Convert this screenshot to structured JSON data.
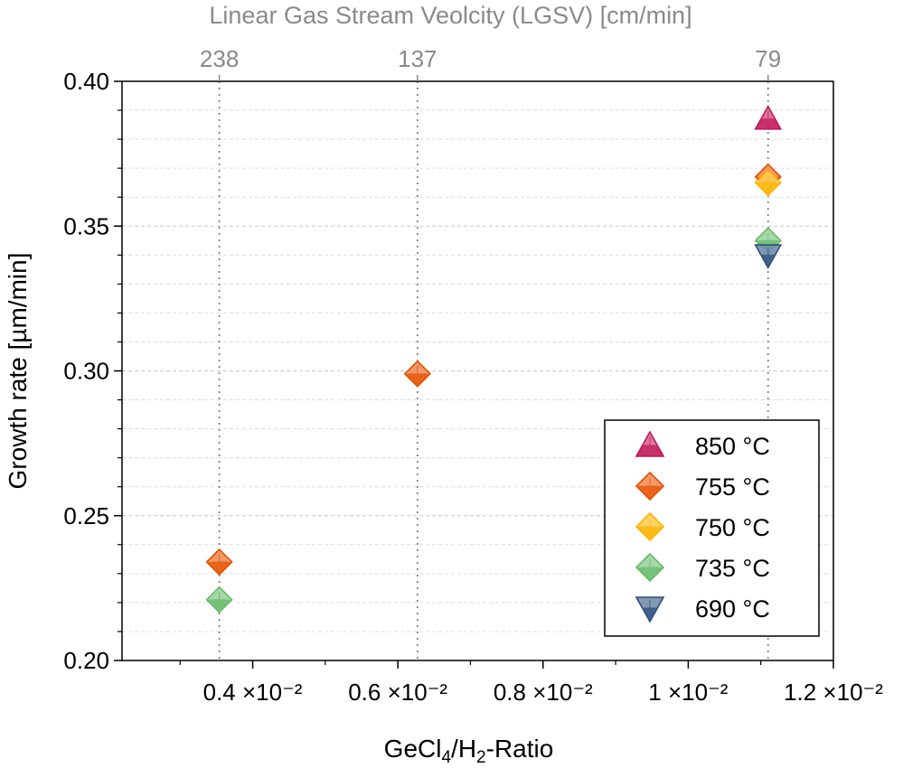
{
  "chart_data": {
    "type": "scatter",
    "xlabel_main": "GeCl",
    "xlabel_sub": "4",
    "xlabel_mid": "/H",
    "xlabel_sub2": "2",
    "xlabel_end": "-Ratio",
    "ylabel": "Growth rate [µm/min]",
    "top_xlabel": "Linear Gas Stream Veolcity (LGSV) [cm/min]",
    "xlim": [
      0.0022,
      0.012
    ],
    "ylim": [
      0.2,
      0.4
    ],
    "x_ticks": [
      {
        "value": 0.004,
        "label": "0.4 ×10⁻²"
      },
      {
        "value": 0.006,
        "label": "0.6 ×10⁻²"
      },
      {
        "value": 0.008,
        "label": "0.8 ×10⁻²"
      },
      {
        "value": 0.01,
        "label": "1 ×10⁻²"
      },
      {
        "value": 0.012,
        "label": "1.2 ×10⁻²"
      }
    ],
    "y_ticks": [
      {
        "value": 0.2,
        "label": "0.20"
      },
      {
        "value": 0.25,
        "label": "0.25"
      },
      {
        "value": 0.3,
        "label": "0.30"
      },
      {
        "value": 0.35,
        "label": "0.35"
      },
      {
        "value": 0.4,
        "label": "0.40"
      }
    ],
    "top_ticks": [
      {
        "x": 0.00354,
        "label": "238"
      },
      {
        "x": 0.00627,
        "label": "137"
      },
      {
        "x": 0.0111,
        "label": "79"
      }
    ],
    "grid": {
      "horizontal": true,
      "vertical_dotted_at_top_ticks": true
    },
    "legend_position": "bottom-right",
    "series": [
      {
        "name": "850 °C",
        "marker": "triangle-up",
        "color": "#c2185b",
        "points": [
          {
            "x": 0.0111,
            "y": 0.387
          }
        ]
      },
      {
        "name": "755 °C",
        "marker": "diamond",
        "color": "#e65100",
        "points": [
          {
            "x": 0.00354,
            "y": 0.234
          },
          {
            "x": 0.00627,
            "y": 0.299
          },
          {
            "x": 0.0111,
            "y": 0.367
          }
        ]
      },
      {
        "name": "750 °C",
        "marker": "diamond",
        "color": "#ffb300",
        "points": [
          {
            "x": 0.0111,
            "y": 0.365
          }
        ]
      },
      {
        "name": "735 °C",
        "marker": "diamond",
        "color": "#66bb6a",
        "points": [
          {
            "x": 0.00354,
            "y": 0.221
          },
          {
            "x": 0.0111,
            "y": 0.345
          }
        ]
      },
      {
        "name": "690 °C",
        "marker": "triangle-down",
        "color": "#2c4f7c",
        "points": [
          {
            "x": 0.0111,
            "y": 0.34
          }
        ]
      }
    ]
  }
}
